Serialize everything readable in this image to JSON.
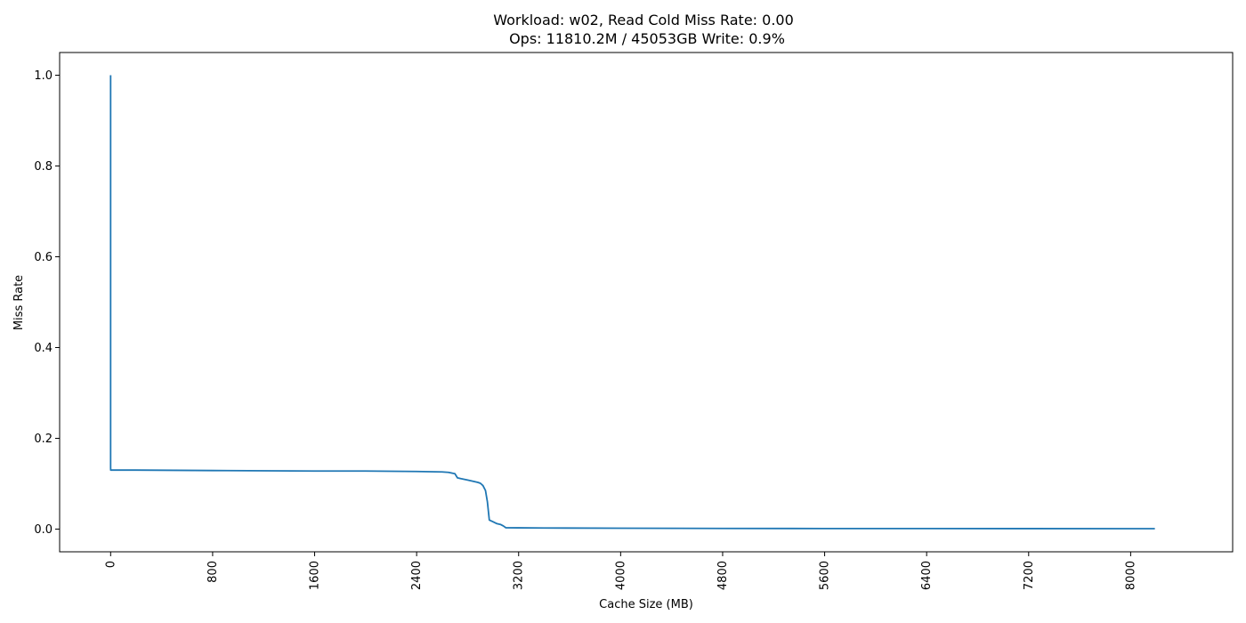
{
  "chart_data": {
    "type": "line",
    "title_lines": [
      "Workload: w02, Read Cold Miss Rate: 0.00",
      "Ops: 11810.2M / 45053GB Write: 0.9%"
    ],
    "xlabel": "Cache Size (MB)",
    "ylabel": "Miss Rate",
    "xlim": [
      -400,
      8800
    ],
    "ylim": [
      -0.05,
      1.05
    ],
    "x_ticks": [
      0,
      800,
      1600,
      2400,
      3200,
      4000,
      4800,
      5600,
      6400,
      7200,
      8000
    ],
    "x_tick_labels": [
      "0",
      "800",
      "1600",
      "2400",
      "3200",
      "4000",
      "4800",
      "5600",
      "6400",
      "7200",
      "8000"
    ],
    "y_ticks": [
      0.0,
      0.2,
      0.4,
      0.6,
      0.8,
      1.0
    ],
    "y_tick_labels": [
      "0.0",
      "0.2",
      "0.4",
      "0.6",
      "0.8",
      "1.0"
    ],
    "grid": false,
    "line_color": "#1f77b4",
    "series": [
      {
        "x": [
          0,
          0,
          0.5,
          200,
          800,
          1600,
          2000,
          2400,
          2600,
          2650,
          2700,
          2720,
          2750,
          2800,
          2850,
          2880,
          2900,
          2920,
          2940,
          2955,
          2970,
          3000,
          3030,
          3060,
          3080,
          3100,
          3200,
          3400,
          4000,
          4800,
          5600,
          6400,
          7200,
          8000,
          8190
        ],
        "y": [
          1.0,
          0.135,
          0.13,
          0.13,
          0.129,
          0.128,
          0.128,
          0.127,
          0.126,
          0.125,
          0.122,
          0.113,
          0.111,
          0.108,
          0.105,
          0.103,
          0.101,
          0.096,
          0.085,
          0.06,
          0.02,
          0.016,
          0.012,
          0.01,
          0.007,
          0.003,
          0.0028,
          0.0024,
          0.002,
          0.0015,
          0.0013,
          0.0012,
          0.0011,
          0.001,
          0.001
        ]
      }
    ]
  }
}
